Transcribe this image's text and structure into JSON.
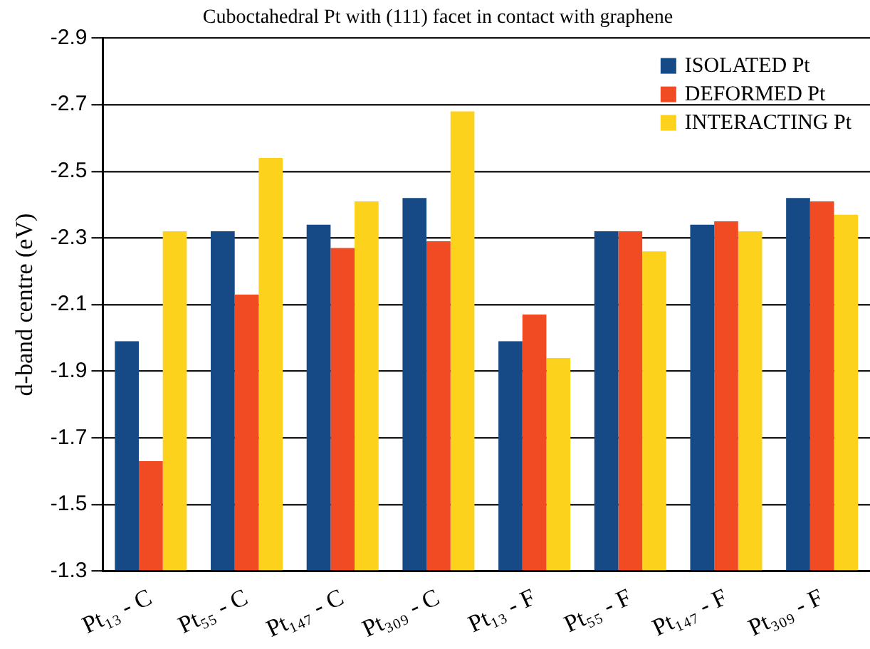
{
  "chart_data": {
    "type": "bar",
    "title": "Cuboctahedral Pt with (111) facet in contact with graphene",
    "ylabel": "d-band centre (eV)",
    "categories": [
      "Pt₁₃ - C",
      "Pt₅₅ - C",
      "Pt₁₄₇ - C",
      "Pt₃₀₉ - C",
      "Pt₁₃ - F",
      "Pt₅₅ - F",
      "Pt₁₄₇ - F",
      "Pt₃₀₉ - F"
    ],
    "series": [
      {
        "name": "ISOLATED Pt",
        "color": "#164a86",
        "values": [
          -1.99,
          -2.32,
          -2.34,
          -2.42,
          -1.99,
          -2.32,
          -2.34,
          -2.42
        ]
      },
      {
        "name": "DEFORMED Pt",
        "color": "#f04b22",
        "values": [
          -1.63,
          -2.13,
          -2.27,
          -2.29,
          -2.07,
          -2.32,
          -2.35,
          -2.41
        ]
      },
      {
        "name": "INTERACTING Pt",
        "color": "#fdd21c",
        "values": [
          -2.32,
          -2.54,
          -2.41,
          -2.68,
          -1.94,
          -2.26,
          -2.32,
          -2.37
        ]
      }
    ],
    "ylim": [
      -1.3,
      -2.9
    ],
    "yticks": [
      -1.3,
      -1.5,
      -1.7,
      -1.9,
      -2.1,
      -2.3,
      -2.5,
      -2.7,
      -2.9
    ],
    "grid": "y",
    "legend": "top right"
  }
}
